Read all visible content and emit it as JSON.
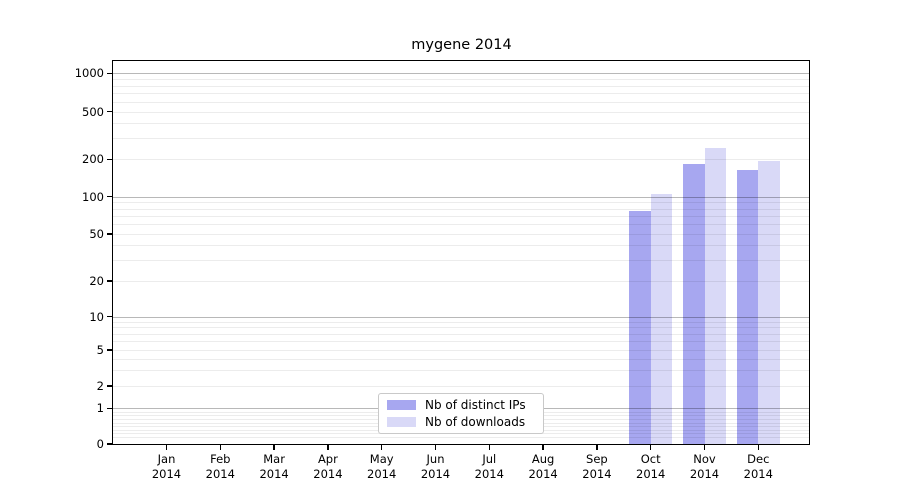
{
  "chart_data": {
    "type": "bar",
    "title": "mygene 2014",
    "categories": [
      "Jan",
      "Feb",
      "Mar",
      "Apr",
      "May",
      "Jun",
      "Jul",
      "Aug",
      "Sep",
      "Oct",
      "Nov",
      "Dec"
    ],
    "year_label": "2014",
    "series": [
      {
        "name": "Nb of distinct IPs",
        "color": "#a7a7f0",
        "values": [
          null,
          null,
          null,
          null,
          null,
          null,
          null,
          null,
          null,
          77,
          183,
          165
        ]
      },
      {
        "name": "Nb of downloads",
        "color": "#d9d9f7",
        "values": [
          null,
          null,
          null,
          null,
          null,
          null,
          null,
          null,
          null,
          105,
          248,
          195
        ]
      }
    ],
    "yticks": [
      0,
      1,
      2,
      5,
      10,
      20,
      50,
      100,
      200,
      500,
      1000
    ],
    "yscale": "symlog",
    "ylim": [
      0,
      1200
    ],
    "grid": "horizontal",
    "legend_position": "lower-center",
    "colors": {
      "bar_distinct_ips": "#a7a7f0",
      "bar_downloads": "#d9d9f7",
      "major_grid": "#b8b8b8",
      "minor_grid": "#ececec",
      "axis": "#000000",
      "text": "#000000",
      "background": "#ffffff"
    }
  }
}
